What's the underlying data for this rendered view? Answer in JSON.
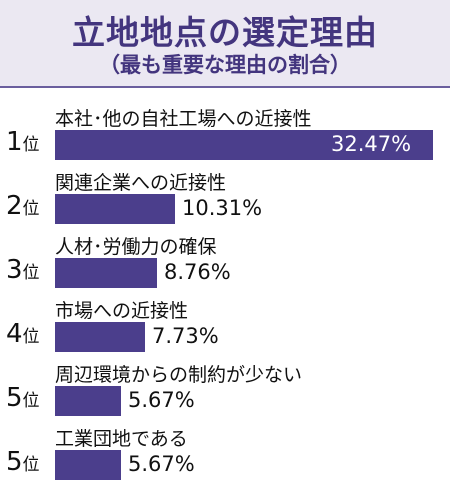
{
  "chart_data": {
    "type": "bar",
    "orientation": "horizontal",
    "title": "立地地点の選定理由",
    "subtitle": "（最も重要な理由の割合）",
    "rank_suffix": "位",
    "unit": "%",
    "xlim": [
      0,
      32.47
    ],
    "accent_color": "#4b3e8c",
    "items": [
      {
        "rank": "1",
        "category": "本社･他の自社工場への近接性",
        "value": 32.47,
        "label": "32.47%"
      },
      {
        "rank": "2",
        "category": "関連企業への近接性",
        "value": 10.31,
        "label": "10.31%"
      },
      {
        "rank": "3",
        "category": "人材･労働力の確保",
        "value": 8.76,
        "label": "8.76%"
      },
      {
        "rank": "4",
        "category": "市場への近接性",
        "value": 7.73,
        "label": "7.73%"
      },
      {
        "rank": "5",
        "category": "周辺環境からの制約が少ない",
        "value": 5.67,
        "label": "5.67%"
      },
      {
        "rank": "5",
        "category": "工業団地である",
        "value": 5.67,
        "label": "5.67%"
      }
    ]
  }
}
